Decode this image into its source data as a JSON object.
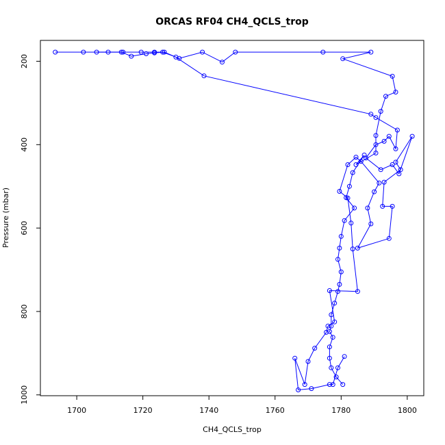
{
  "chart_data": {
    "type": "line",
    "title": "ORCAS RF04 CH4_QCLS_trop",
    "xlabel": "CH4_QCLS_trop",
    "ylabel": "Pressure (mbar)",
    "xlim": [
      1689,
      1805
    ],
    "ylim": [
      150,
      1002
    ],
    "y_inverted": true,
    "x_ticks": [
      1700,
      1720,
      1740,
      1760,
      1780,
      1800
    ],
    "y_ticks": [
      200,
      400,
      600,
      800,
      1000
    ],
    "grid": false,
    "legend": "none",
    "marker": "open-circle",
    "color": "#0000ff",
    "series": [
      {
        "x": [
          1693.5,
          1702,
          1709.5,
          1714,
          1719.5,
          1723.5,
          1726,
          1731,
          1738,
          1744,
          1748,
          1774.5,
          1789,
          1780.5,
          1795.5,
          1796.5,
          1793.5,
          1792,
          1790.5,
          1790.5,
          1784.5,
          1787,
          1783.5,
          1782.5,
          1781.5,
          1784,
          1781,
          1780,
          1779.5,
          1779,
          1780,
          1779.5,
          1779,
          1778,
          1777,
          1777,
          1776.5,
          1777.5,
          1776.5,
          1776.5,
          1777,
          1778.5,
          1780.5
        ],
        "y": [
          178,
          178,
          178,
          178,
          178,
          178,
          178,
          193,
          178,
          202,
          178,
          178,
          178,
          194,
          236,
          274,
          284,
          320,
          378,
          420,
          448,
          425,
          467,
          500,
          527,
          552,
          582,
          620,
          648,
          675,
          705,
          735,
          752,
          780,
          808,
          835,
          848,
          862,
          885,
          912,
          935,
          957,
          975
        ]
      },
      {
        "x": [
          1706,
          1713.5,
          1716.5,
          1721,
          1723.5,
          1726.5,
          1730,
          1738.5,
          1789,
          1790.5,
          1797,
          1796.5,
          1794.5,
          1793,
          1790.5,
          1787.5,
          1792,
          1795.5,
          1797.5,
          1801.5,
          1796.5,
          1798,
          1793,
          1792.5,
          1795.5,
          1794.5,
          1785,
          1789,
          1788,
          1790,
          1791.5,
          1786,
          1784.5,
          1782,
          1779.5,
          1782,
          1783,
          1783.5,
          1785,
          1776.5,
          1778,
          1776,
          1775.5,
          1772,
          1770,
          1769,
          1766,
          1767,
          1771,
          1776.5,
          1777.5,
          1779,
          1781
        ],
        "y": [
          178,
          178,
          188,
          182,
          180,
          178,
          190,
          235,
          327,
          335,
          365,
          410,
          380,
          392,
          400,
          432,
          460,
          448,
          470,
          380,
          442,
          460,
          490,
          548,
          548,
          625,
          648,
          590,
          552,
          513,
          492,
          440,
          430,
          448,
          512,
          528,
          588,
          650,
          752,
          750,
          825,
          835,
          850,
          888,
          920,
          975,
          912,
          988,
          985,
          975,
          975,
          935,
          908
        ]
      }
    ]
  }
}
